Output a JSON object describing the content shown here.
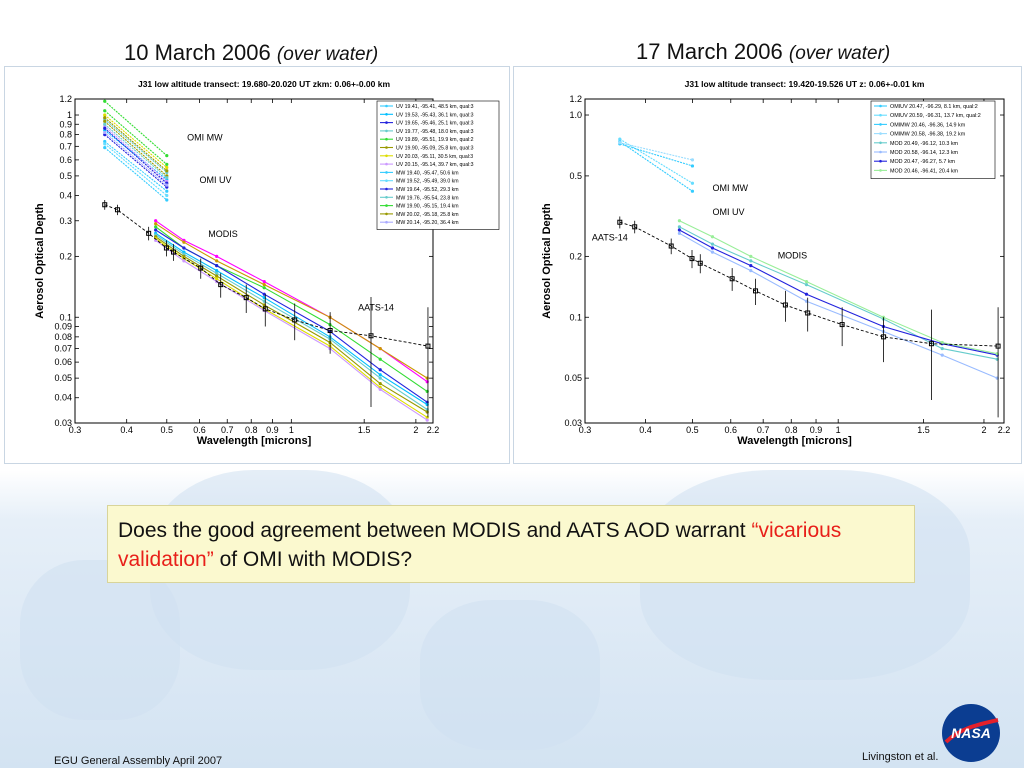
{
  "slide": {
    "title_left_date": "10 March 2006",
    "title_left_sub": "(over water)",
    "title_right_date": "17 March 2006",
    "title_right_sub": "(over water)",
    "question_part1": "Does the good agreement between MODIS and AATS AOD warrant ",
    "question_highlight": "“vicarious validation”",
    "question_part2": " of OMI with MODIS?",
    "footer_left": "EGU General Assembly April 2007",
    "footer_right": "Livingston et al.",
    "logo_text": "NASA",
    "highlight_color": "#e8201a"
  },
  "chart_data": [
    {
      "type": "line",
      "title": "J31 low altitude transect:     19.680-20.020 UT    zkm: 0.06+-0.00 km",
      "xlabel": "Wavelength [microns]",
      "ylabel": "Aerosol Optical Depth",
      "xscale": "log",
      "yscale": "log",
      "xlim": [
        0.3,
        2.2
      ],
      "ylim": [
        0.03,
        1.2
      ],
      "xticks": [
        0.3,
        0.4,
        0.5,
        0.6,
        0.7,
        0.8,
        0.9,
        1,
        1.5,
        2,
        2.2
      ],
      "xtick_labels": [
        "0.3",
        "0.4",
        "0.5",
        "0.6",
        "0.7",
        "0.8",
        "0.9",
        "1",
        "1.5",
        "2",
        "2.2"
      ],
      "yticks": [
        0.03,
        0.04,
        0.05,
        0.06,
        0.07,
        0.08,
        0.09,
        0.1,
        0.2,
        0.3,
        0.4,
        0.5,
        0.6,
        0.7,
        0.8,
        0.9,
        1,
        1.2
      ],
      "ytick_labels": [
        "0.03",
        "0.04",
        "0.05",
        "0.06",
        "0.07",
        "0.08",
        "0.09",
        "0.1",
        "0.2",
        "0.3",
        "0.4",
        "0.5",
        "0.6",
        "0.7",
        "0.8",
        "0.9",
        "1",
        "1.2"
      ],
      "legend_position": "top-right",
      "legend": [
        {
          "label": "UV  19.41, -95.41, 48.5 km, qual:3",
          "color": "#33ccff"
        },
        {
          "label": "UV  19.53, -95.43, 36.1 km, qual:3",
          "color": "#00bfff"
        },
        {
          "label": "UV  19.65, -95.46, 25.1 km, qual:3",
          "color": "#2222dd"
        },
        {
          "label": "UV  19.77, -95.48, 18.0 km, qual:3",
          "color": "#66cccc"
        },
        {
          "label": "UV  19.89, -95.51, 19.9 km, qual:2",
          "color": "#33dd33"
        },
        {
          "label": "UV  19.90, -95.09, 25.8 km, qual:3",
          "color": "#999900"
        },
        {
          "label": "UV  20.03, -95.11, 30.5 km, qual:3",
          "color": "#dddd00"
        },
        {
          "label": "UV  20.15, -95.14, 39.7 km, qual:3",
          "color": "#cc99ff"
        },
        {
          "label": "MW  19.40, -95.47, 50.6 km",
          "color": "#33ccff"
        },
        {
          "label": "MW  19.52, -95.49, 39.0 km",
          "color": "#66ddff"
        },
        {
          "label": "MW  19.64, -95.52, 29.3 km",
          "color": "#2222dd"
        },
        {
          "label": "MW  19.76, -95.54, 23.8 km",
          "color": "#66cccc"
        },
        {
          "label": "MW  19.90, -95.15, 19.4 km",
          "color": "#33dd33"
        },
        {
          "label": "MW  20.02, -95.18, 25.8 km",
          "color": "#999900"
        },
        {
          "label": "MW  20.14, -95.20, 36.4 km",
          "color": "#aaaaff"
        }
      ],
      "annotations": [
        "OMI MW",
        "OMI UV",
        "MODIS",
        "AATS-14"
      ],
      "series": [
        {
          "name": "UV  19.41, -95.41, 48.5 km, qual:3",
          "group": "omi",
          "color": "#33ccff",
          "x": [
            0.354,
            0.5
          ],
          "y": [
            0.74,
            0.42
          ]
        },
        {
          "name": "UV  19.53, -95.43, 36.1 km, qual:3",
          "group": "omi",
          "color": "#00bfff",
          "x": [
            0.354,
            0.5
          ],
          "y": [
            0.84,
            0.48
          ]
        },
        {
          "name": "UV  19.65, -95.46, 25.1 km, qual:3",
          "group": "omi",
          "color": "#2222dd",
          "x": [
            0.354,
            0.5
          ],
          "y": [
            0.8,
            0.44
          ]
        },
        {
          "name": "UV  19.77, -95.48, 18.0 km, qual:3",
          "group": "omi",
          "color": "#66cccc",
          "x": [
            0.354,
            0.5
          ],
          "y": [
            0.95,
            0.52
          ]
        },
        {
          "name": "UV  19.89, -95.51, 19.9 km, qual:2",
          "group": "omi",
          "color": "#33dd33",
          "x": [
            0.354,
            0.5
          ],
          "y": [
            1.17,
            0.63
          ]
        },
        {
          "name": "UV  19.90, -95.09, 25.8 km, qual:3",
          "group": "omi",
          "color": "#999900",
          "x": [
            0.354,
            0.5
          ],
          "y": [
            0.93,
            0.5
          ]
        },
        {
          "name": "UV  20.03, -95.11, 30.5 km, qual:3",
          "group": "omi",
          "color": "#dddd00",
          "x": [
            0.354,
            0.5
          ],
          "y": [
            1.0,
            0.55
          ]
        },
        {
          "name": "UV  20.15, -95.14, 39.7 km, qual:3",
          "group": "omi",
          "color": "#cc99ff",
          "x": [
            0.354,
            0.5
          ],
          "y": [
            0.88,
            0.47
          ]
        },
        {
          "name": "MW  19.40, -95.47, 50.6 km",
          "group": "omi",
          "color": "#33ccff",
          "x": [
            0.354,
            0.5
          ],
          "y": [
            0.69,
            0.38
          ]
        },
        {
          "name": "MW  19.52, -95.49, 39.0 km",
          "group": "omi",
          "color": "#66ddff",
          "x": [
            0.354,
            0.5
          ],
          "y": [
            0.72,
            0.4
          ]
        },
        {
          "name": "MW  19.64, -95.52, 29.3 km",
          "group": "omi",
          "color": "#2222dd",
          "x": [
            0.354,
            0.5
          ],
          "y": [
            0.86,
            0.46
          ]
        },
        {
          "name": "MW  19.76, -95.54, 23.8 km",
          "group": "omi",
          "color": "#66cccc",
          "x": [
            0.354,
            0.5
          ],
          "y": [
            0.9,
            0.49
          ]
        },
        {
          "name": "MW  19.90, -95.15, 19.4 km",
          "group": "omi",
          "color": "#33dd33",
          "x": [
            0.354,
            0.5
          ],
          "y": [
            1.05,
            0.57
          ]
        },
        {
          "name": "MW  20.02, -95.18, 25.8 km",
          "group": "omi",
          "color": "#999900",
          "x": [
            0.354,
            0.5
          ],
          "y": [
            0.97,
            0.53
          ]
        },
        {
          "name": "MW  20.14, -95.20, 36.4 km",
          "group": "omi",
          "color": "#aaaaff",
          "x": [
            0.354,
            0.5
          ],
          "y": [
            0.82,
            0.45
          ]
        },
        {
          "name": "",
          "group": "modis",
          "color": "#ff00ff",
          "x": [
            0.47,
            0.55,
            0.66,
            0.86,
            1.24,
            1.64,
            2.13
          ],
          "y": [
            0.3,
            0.24,
            0.2,
            0.15,
            0.1,
            0.07,
            0.048
          ]
        },
        {
          "name": "",
          "group": "modis",
          "color": "#cc9900",
          "x": [
            0.47,
            0.55,
            0.66,
            0.86,
            1.24,
            1.64,
            2.13
          ],
          "y": [
            0.29,
            0.235,
            0.19,
            0.145,
            0.1,
            0.07,
            0.05
          ]
        },
        {
          "name": "",
          "group": "modis",
          "color": "#33dd33",
          "x": [
            0.47,
            0.55,
            0.66,
            0.86,
            1.24,
            1.64,
            2.13
          ],
          "y": [
            0.28,
            0.22,
            0.18,
            0.14,
            0.092,
            0.062,
            0.043
          ]
        },
        {
          "name": "",
          "group": "modis",
          "color": "#2222dd",
          "x": [
            0.47,
            0.55,
            0.66,
            0.86,
            1.24,
            1.64,
            2.13
          ],
          "y": [
            0.27,
            0.22,
            0.18,
            0.13,
            0.085,
            0.055,
            0.038
          ]
        },
        {
          "name": "",
          "group": "modis",
          "color": "#00bfff",
          "x": [
            0.47,
            0.55,
            0.66,
            0.86,
            1.24,
            1.64,
            2.13
          ],
          "y": [
            0.26,
            0.21,
            0.17,
            0.125,
            0.08,
            0.052,
            0.037
          ]
        },
        {
          "name": "",
          "group": "modis",
          "color": "#66cccc",
          "x": [
            0.47,
            0.55,
            0.66,
            0.86,
            1.24,
            1.64,
            2.13
          ],
          "y": [
            0.255,
            0.205,
            0.165,
            0.12,
            0.078,
            0.05,
            0.035
          ]
        },
        {
          "name": "",
          "group": "modis",
          "color": "#999900",
          "x": [
            0.47,
            0.55,
            0.66,
            0.86,
            1.24,
            1.64,
            2.13
          ],
          "y": [
            0.25,
            0.2,
            0.16,
            0.115,
            0.075,
            0.047,
            0.034
          ]
        },
        {
          "name": "",
          "group": "modis",
          "color": "#dddd00",
          "x": [
            0.47,
            0.55,
            0.66,
            0.86,
            1.24,
            1.64,
            2.13
          ],
          "y": [
            0.245,
            0.195,
            0.155,
            0.11,
            0.072,
            0.045,
            0.032
          ]
        },
        {
          "name": "",
          "group": "modis",
          "color": "#cc99ff",
          "x": [
            0.47,
            0.55,
            0.66,
            0.86,
            1.24,
            1.64,
            2.13
          ],
          "y": [
            0.24,
            0.19,
            0.15,
            0.108,
            0.07,
            0.044,
            0.031
          ]
        },
        {
          "name": "",
          "group": "aats",
          "color": "#000000",
          "x": [
            0.354,
            0.38,
            0.452,
            0.499,
            0.519,
            0.604,
            0.675,
            0.778,
            0.865,
            1.019,
            1.241,
            1.558,
            2.139
          ],
          "y": [
            0.36,
            0.34,
            0.26,
            0.22,
            0.21,
            0.175,
            0.145,
            0.125,
            0.11,
            0.097,
            0.086,
            0.081,
            0.072
          ],
          "err": [
            0.02,
            0.02,
            0.02,
            0.02,
            0.02,
            0.02,
            0.02,
            0.02,
            0.02,
            0.02,
            0.02,
            0.045,
            0.04
          ]
        }
      ]
    },
    {
      "type": "line",
      "title": "J31 low altitude transect:  19.420-19.526 UT    z: 0.06+-0.01 km",
      "xlabel": "Wavelength [microns]",
      "ylabel": "Aerosol Optical Depth",
      "xscale": "log",
      "yscale": "log",
      "xlim": [
        0.3,
        2.2
      ],
      "ylim": [
        0.03,
        1.2
      ],
      "xticks": [
        0.3,
        0.4,
        0.5,
        0.6,
        0.7,
        0.8,
        0.9,
        1,
        1.5,
        2,
        2.2
      ],
      "xtick_labels": [
        "0.3",
        "0.4",
        "0.5",
        "0.6",
        "0.7",
        "0.8",
        "0.9",
        "1",
        "1.5",
        "2",
        "2.2"
      ],
      "yticks": [
        0.03,
        0.05,
        0.1,
        0.2,
        0.5,
        1.0,
        1.2
      ],
      "ytick_labels": [
        "0.03",
        "0.05",
        "0.1",
        "0.2",
        "0.5",
        "1.0",
        "1.2"
      ],
      "legend_position": "top-right",
      "legend": [
        {
          "label": "OMIUV  20.47, -96.29,  8.1 km, qual:2",
          "color": "#33ccff"
        },
        {
          "label": "OMIUV  20.59, -96.31, 13.7 km, qual:2",
          "color": "#66ddff"
        },
        {
          "label": "OMIMW  20.46, -96.36, 14.9 km",
          "color": "#33ccff"
        },
        {
          "label": "OMIMW  20.58, -96.38, 19.2 km",
          "color": "#99ddff"
        },
        {
          "label": "MOD    20.49, -96.12, 10.3 km",
          "color": "#66cccc"
        },
        {
          "label": "MOD    20.58, -96.14, 12.3 km",
          "color": "#99bbff"
        },
        {
          "label": "MOD    20.47, -96.27,  5.7 km",
          "color": "#2222dd"
        },
        {
          "label": "MOD    20.46, -96.41, 20.4 km",
          "color": "#99ee99"
        }
      ],
      "annotations": [
        "OMI MW",
        "OMI UV",
        "MODIS",
        "AATS-14"
      ],
      "series": [
        {
          "name": "OMIUV  20.47, -96.29,  8.1 km, qual:2",
          "group": "omi",
          "color": "#33ccff",
          "x": [
            0.354,
            0.5
          ],
          "y": [
            0.74,
            0.42
          ]
        },
        {
          "name": "OMIUV  20.59, -96.31, 13.7 km, qual:2",
          "group": "omi",
          "color": "#66ddff",
          "x": [
            0.354,
            0.5
          ],
          "y": [
            0.76,
            0.46
          ]
        },
        {
          "name": "OMIMW  20.46, -96.36, 14.9 km",
          "group": "omi",
          "color": "#33ccff",
          "x": [
            0.354,
            0.5
          ],
          "y": [
            0.72,
            0.56
          ]
        },
        {
          "name": "OMIMW  20.58, -96.38, 19.2 km",
          "group": "omi",
          "color": "#99ddff",
          "x": [
            0.354,
            0.5
          ],
          "y": [
            0.73,
            0.6
          ]
        },
        {
          "name": "MOD    20.49, -96.12, 10.3 km",
          "group": "modis",
          "color": "#66cccc",
          "x": [
            0.47,
            0.55,
            0.66,
            0.86,
            1.24,
            1.64,
            2.13
          ],
          "y": [
            0.28,
            0.23,
            0.19,
            0.145,
            0.098,
            0.07,
            0.062
          ]
        },
        {
          "name": "MOD    20.58, -96.14, 12.3 km",
          "group": "modis",
          "color": "#99bbff",
          "x": [
            0.47,
            0.55,
            0.66,
            0.86,
            1.24,
            1.64,
            2.13
          ],
          "y": [
            0.26,
            0.21,
            0.17,
            0.12,
            0.085,
            0.065,
            0.05
          ]
        },
        {
          "name": "MOD    20.47, -96.27,  5.7 km",
          "group": "modis",
          "color": "#2222dd",
          "x": [
            0.47,
            0.55,
            0.66,
            0.86,
            1.24,
            1.64,
            2.13
          ],
          "y": [
            0.27,
            0.22,
            0.18,
            0.13,
            0.09,
            0.074,
            0.065
          ]
        },
        {
          "name": "MOD    20.46, -96.41, 20.4 km",
          "group": "modis",
          "color": "#99ee99",
          "x": [
            0.47,
            0.55,
            0.66,
            0.86,
            1.24,
            1.64,
            2.13
          ],
          "y": [
            0.3,
            0.25,
            0.2,
            0.15,
            0.1,
            0.075,
            0.066
          ]
        },
        {
          "name": "",
          "group": "aats",
          "color": "#000000",
          "x": [
            0.354,
            0.38,
            0.452,
            0.499,
            0.519,
            0.604,
            0.675,
            0.778,
            0.865,
            1.019,
            1.241,
            1.558,
            2.139
          ],
          "y": [
            0.295,
            0.28,
            0.225,
            0.195,
            0.185,
            0.155,
            0.135,
            0.115,
            0.105,
            0.092,
            0.08,
            0.074,
            0.072
          ],
          "err": [
            0.02,
            0.02,
            0.02,
            0.02,
            0.02,
            0.02,
            0.02,
            0.02,
            0.02,
            0.02,
            0.02,
            0.035,
            0.04
          ]
        }
      ]
    }
  ]
}
